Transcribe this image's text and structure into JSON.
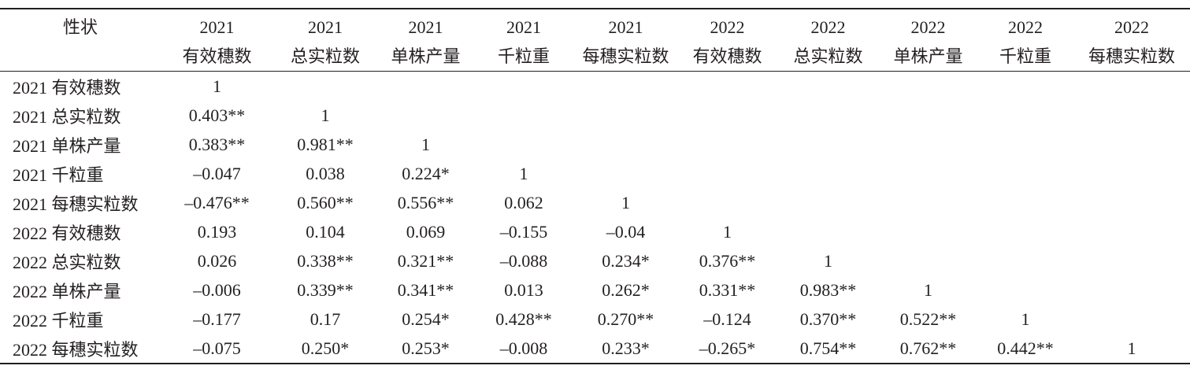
{
  "table": {
    "corner": "性状",
    "columns": [
      {
        "year": "2021",
        "trait": "有效穗数"
      },
      {
        "year": "2021",
        "trait": "总实粒数"
      },
      {
        "year": "2021",
        "trait": "单株产量"
      },
      {
        "year": "2021",
        "trait": "千粒重"
      },
      {
        "year": "2021",
        "trait": "每穗实粒数"
      },
      {
        "year": "2022",
        "trait": "有效穗数"
      },
      {
        "year": "2022",
        "trait": "总实粒数"
      },
      {
        "year": "2022",
        "trait": "单株产量"
      },
      {
        "year": "2022",
        "trait": "千粒重"
      },
      {
        "year": "2022",
        "trait": "每穗实粒数"
      }
    ],
    "rows": [
      {
        "label": "2021 有效穗数",
        "cells": [
          "1"
        ]
      },
      {
        "label": "2021 总实粒数",
        "cells": [
          "0.403**",
          "1"
        ]
      },
      {
        "label": "2021 单株产量",
        "cells": [
          "0.383**",
          "0.981**",
          "1"
        ]
      },
      {
        "label": "2021 千粒重",
        "cells": [
          "–0.047",
          "0.038",
          "0.224*",
          "1"
        ]
      },
      {
        "label": "2021 每穗实粒数",
        "cells": [
          "–0.476**",
          "0.560**",
          "0.556**",
          "0.062",
          "1"
        ]
      },
      {
        "label": "2022 有效穗数",
        "cells": [
          "0.193",
          "0.104",
          "0.069",
          "–0.155",
          "–0.04",
          "1"
        ]
      },
      {
        "label": "2022 总实粒数",
        "cells": [
          "0.026",
          "0.338**",
          "0.321**",
          "–0.088",
          "0.234*",
          "0.376**",
          "1"
        ]
      },
      {
        "label": "2022 单株产量",
        "cells": [
          "–0.006",
          "0.339**",
          "0.341**",
          "0.013",
          "0.262*",
          "0.331**",
          "0.983**",
          "1"
        ]
      },
      {
        "label": "2022 千粒重",
        "cells": [
          "–0.177",
          "0.17",
          "0.254*",
          "0.428**",
          "0.270**",
          "–0.124",
          "0.370**",
          "0.522**",
          "1"
        ]
      },
      {
        "label": "2022 每穗实粒数",
        "cells": [
          "–0.075",
          "0.250*",
          "0.253*",
          "–0.008",
          "0.233*",
          "–0.265*",
          "0.754**",
          "0.762**",
          "0.442**",
          "1"
        ]
      }
    ]
  }
}
